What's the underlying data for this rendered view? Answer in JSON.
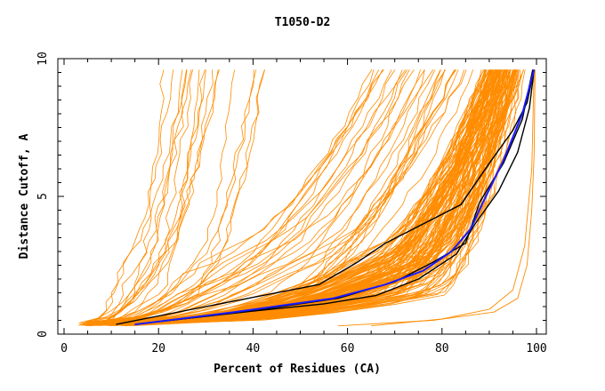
{
  "chart_data": {
    "type": "line",
    "title": "T1050-D2",
    "xlabel": "Percent of Residues (CA)",
    "ylabel": "Distance Cutoff, A",
    "xlim": [
      0,
      100
    ],
    "ylim": [
      0,
      10
    ],
    "x_ticks": [
      "0",
      "20",
      "40",
      "60",
      "80",
      "100"
    ],
    "y_ticks": [
      "0",
      "5",
      "10"
    ],
    "grid": false,
    "legend": "none",
    "colors": {
      "bulk": "#ff8c00",
      "highlight_black": "#000000",
      "highlight_blue": "#1a1aff"
    },
    "highlight_series": [
      {
        "color": "#000000",
        "points": [
          [
            11,
            0.35
          ],
          [
            30,
            1.0
          ],
          [
            54,
            1.8
          ],
          [
            62,
            2.6
          ],
          [
            68,
            3.3
          ],
          [
            76,
            4.0
          ],
          [
            84,
            4.7
          ],
          [
            90,
            6.2
          ],
          [
            95,
            7.4
          ],
          [
            98,
            8.4
          ],
          [
            99.5,
            9.6
          ]
        ]
      },
      {
        "color": "#000000",
        "points": [
          [
            15,
            0.35
          ],
          [
            35,
            0.75
          ],
          [
            55,
            1.1
          ],
          [
            66,
            1.4
          ],
          [
            75,
            2.0
          ],
          [
            83,
            2.9
          ],
          [
            87,
            4.0
          ],
          [
            92,
            5.2
          ],
          [
            96,
            6.6
          ],
          [
            98.5,
            8.2
          ],
          [
            99.5,
            9.6
          ]
        ]
      },
      {
        "color": "#000000",
        "points": [
          [
            15,
            0.35
          ],
          [
            38,
            0.8
          ],
          [
            58,
            1.3
          ],
          [
            70,
            1.9
          ],
          [
            78,
            2.6
          ],
          [
            85,
            3.3
          ],
          [
            88,
            4.8
          ],
          [
            93,
            6.2
          ],
          [
            97,
            7.8
          ],
          [
            99.2,
            9.6
          ]
        ]
      },
      {
        "color": "#1a1aff",
        "points": [
          [
            15,
            0.35
          ],
          [
            36,
            0.8
          ],
          [
            57,
            1.3
          ],
          [
            68,
            1.8
          ],
          [
            76,
            2.3
          ],
          [
            82,
            3.0
          ],
          [
            86,
            3.8
          ],
          [
            89,
            4.9
          ],
          [
            93,
            6.3
          ],
          [
            97,
            8.0
          ],
          [
            99.5,
            9.6
          ]
        ]
      }
    ],
    "bulk_families": [
      {
        "count": 130,
        "x0": [
          5,
          15
        ],
        "x_mid": [
          60,
          80
        ],
        "x_end": [
          88,
          98
        ],
        "note": "dense sigmoid band"
      },
      {
        "count": 30,
        "x0": [
          3,
          8
        ],
        "x_mid": [
          25,
          55
        ],
        "x_end": [
          60,
          90
        ],
        "note": "spread curves"
      },
      {
        "count": 18,
        "x0": [
          3,
          6
        ],
        "x_mid": [
          12,
          30
        ],
        "x_end": [
          18,
          45
        ],
        "note": "steep left curves"
      }
    ],
    "bulk_outliers": [
      {
        "points": [
          [
            58,
            0.3
          ],
          [
            78,
            0.5
          ],
          [
            91,
            0.8
          ],
          [
            96,
            1.3
          ],
          [
            98,
            2.5
          ],
          [
            99,
            4.5
          ],
          [
            99.5,
            6.5
          ],
          [
            99.7,
            9.6
          ]
        ]
      },
      {
        "points": [
          [
            65,
            0.3
          ],
          [
            80,
            0.55
          ],
          [
            90,
            0.9
          ],
          [
            95,
            1.6
          ],
          [
            97.5,
            3.2
          ],
          [
            99,
            6.0
          ],
          [
            99.5,
            9.6
          ]
        ]
      }
    ]
  }
}
